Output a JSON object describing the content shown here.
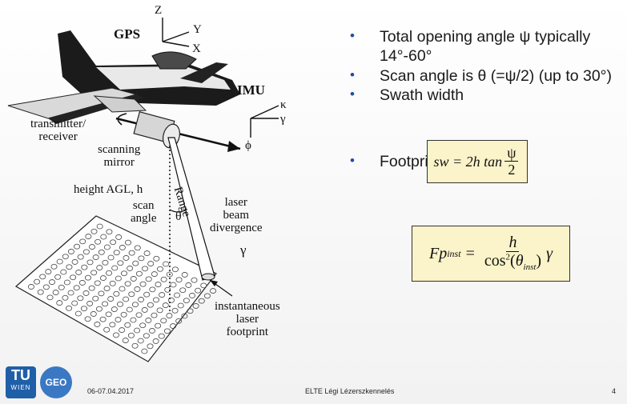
{
  "diagram": {
    "labels": {
      "gps": "GPS",
      "axis_z": "Z",
      "axis_y": "Y",
      "axis_x": "X",
      "imu": "IMU",
      "kappa": "κ",
      "gamma_imu": "γ",
      "phi": "ϕ",
      "transmitter": "transmitter/\nreceiver",
      "scanning_mirror": "scanning\nmirror",
      "height": "height AGL, h",
      "scan_angle": "scan\nangle",
      "theta": "θ",
      "range": "Range",
      "laser_beam": "laser\nbeam\ndivergence",
      "gamma_beam": "γ",
      "footprint": "instantaneous\nlaser\nfootprint"
    }
  },
  "bullets": [
    "Total opening angle ψ typically 14°-60°",
    "Scan angle is θ (=ψ/2) (up to 30°)",
    "Swath width",
    "Footprint diameter"
  ],
  "formulas": {
    "swath_lhs": "sw = 2h tan",
    "swath_num": "ψ",
    "swath_den": "2",
    "fp_lhs": "Fp",
    "fp_sub": "inst",
    "fp_num": "h",
    "fp_den_cos": "cos",
    "fp_den_sup": "2",
    "fp_den_theta": "θ",
    "fp_den_sub": "inst",
    "fp_gamma": "γ"
  },
  "footer": {
    "logo_tu": "TU",
    "logo_wien": "WIEN",
    "logo_geo": "GEO",
    "date": "06-07.04.2017",
    "title": "ELTE Légi Lézerszkennelés",
    "page": "4"
  }
}
